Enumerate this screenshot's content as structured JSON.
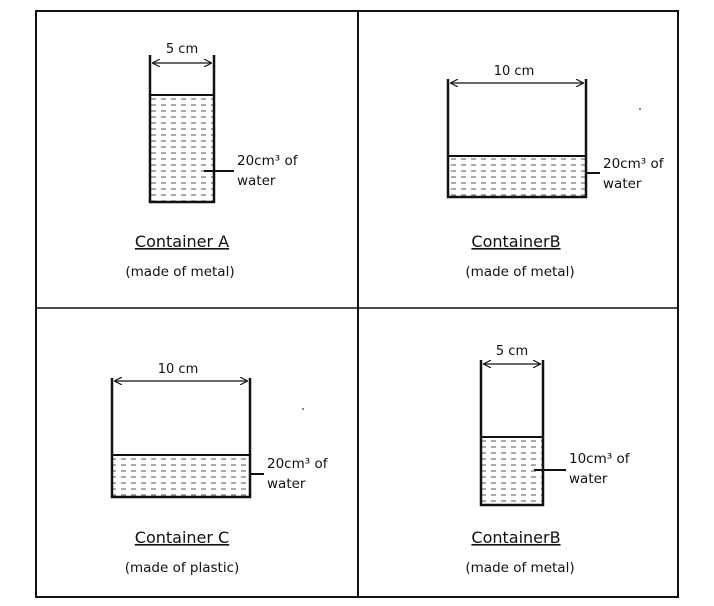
{
  "panels": [
    {
      "dimension": "5 cm",
      "volume_line1": "20cm³ of",
      "volume_line2": "water",
      "title": "Container A",
      "material": "(made of metal)"
    },
    {
      "dimension": "10 cm",
      "volume_line1": "20cm³ of",
      "volume_line2": "water",
      "title": "ContainerB",
      "material": "(made of metal)"
    },
    {
      "dimension": "10 cm",
      "volume_line1": "20cm³ of",
      "volume_line2": "water",
      "title": "Container C",
      "material": "(made of plastic)"
    },
    {
      "dimension": "5 cm",
      "volume_line1": "10cm³ of",
      "volume_line2": "water",
      "title": "ContainerB",
      "material": "(made of metal)"
    }
  ],
  "colors": {
    "line": "#111111",
    "water_dash": "#555555",
    "background": "#ffffff"
  }
}
